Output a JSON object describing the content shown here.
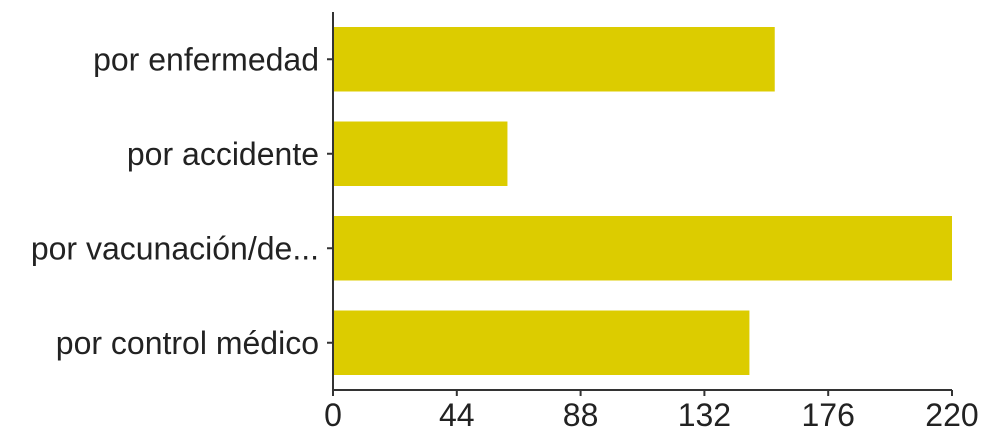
{
  "chart_data": {
    "type": "bar",
    "orientation": "horizontal",
    "categories": [
      "por enfermedad",
      "por accidente",
      "por vacunación/de...",
      "por control médico"
    ],
    "values": [
      157,
      62,
      220,
      148
    ],
    "xlim": [
      0,
      220
    ],
    "xticks": [
      0,
      44,
      88,
      132,
      176,
      220
    ],
    "title": "",
    "xlabel": "",
    "ylabel": "",
    "grid": false,
    "legend": "none",
    "bar_color": "#dccc00"
  }
}
